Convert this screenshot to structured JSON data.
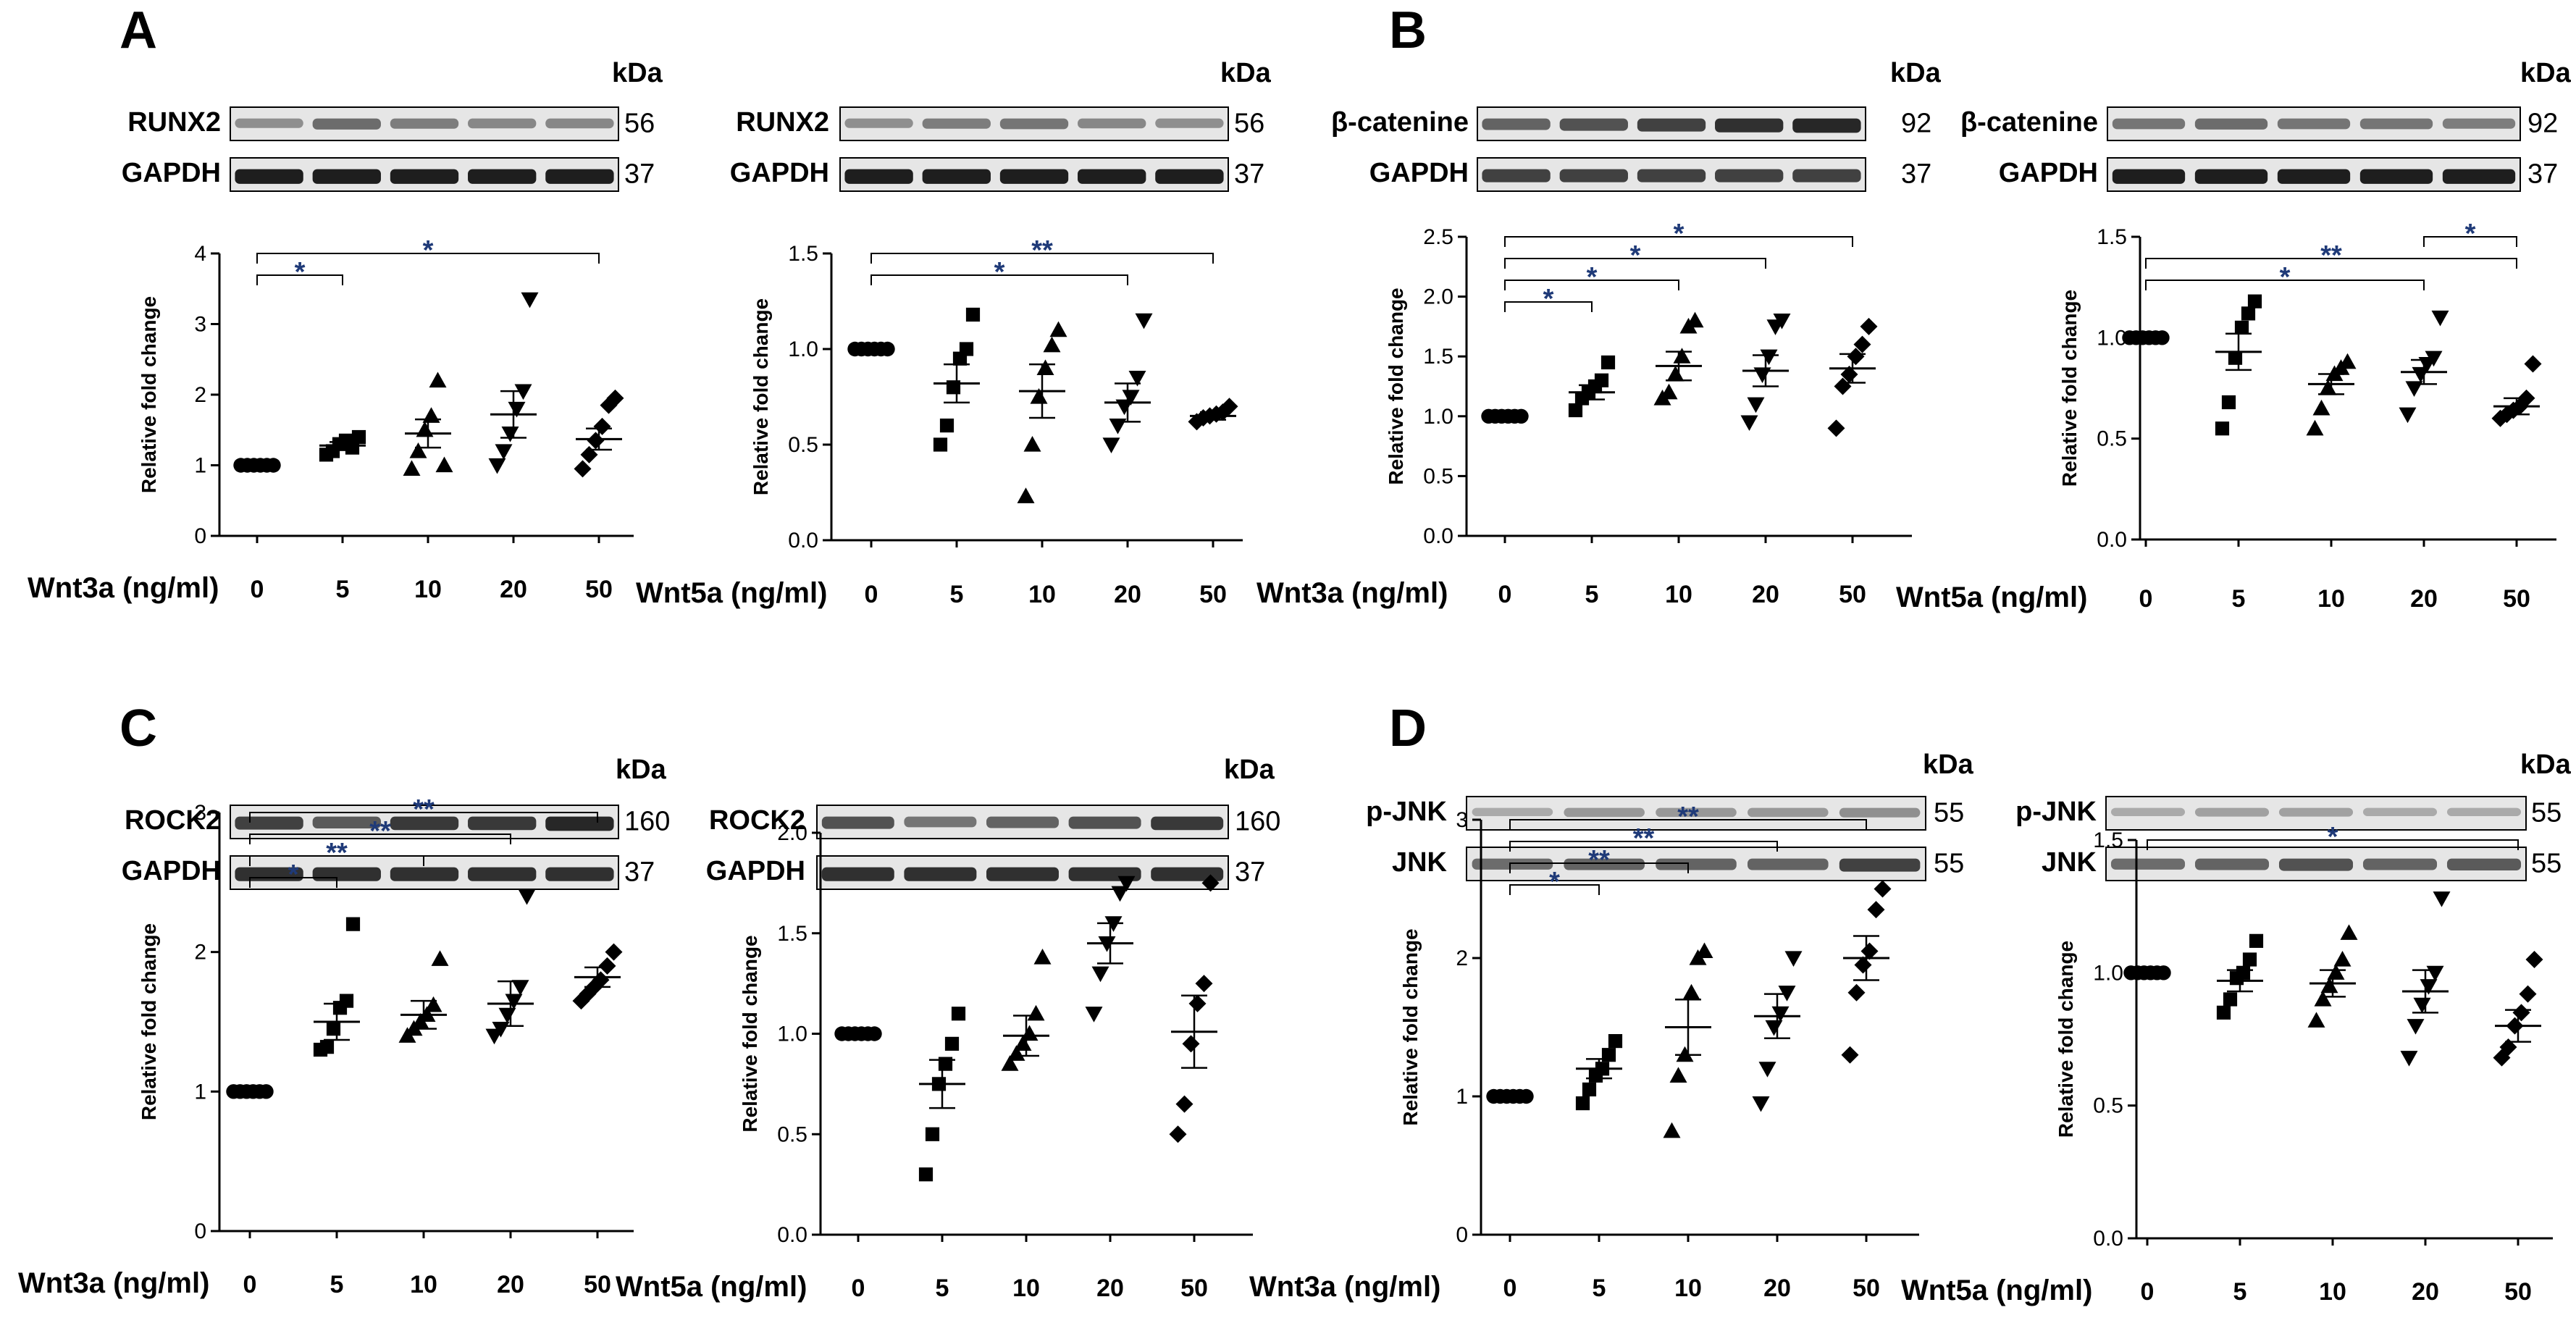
{
  "colors": {
    "ink": "#000000",
    "significance": "#1f3a78",
    "blot_bg": "#e6e6e6",
    "band": "#111111"
  },
  "panel_letters": [
    "A",
    "B",
    "C",
    "D"
  ],
  "kda_label": "kDa",
  "chart_data": [
    {
      "type": "scatter",
      "panel": "A",
      "blot_labels": [
        "RUNX2",
        "GAPDH"
      ],
      "mw": [
        "56",
        "37"
      ],
      "band_intensity": [
        [
          0.35,
          0.55,
          0.45,
          0.4,
          0.4
        ],
        [
          1,
          1,
          1,
          1,
          1
        ]
      ],
      "xlabel": "Wnt3a (ng/ml)",
      "ylabel": "Relative fold change",
      "categories": [
        "0",
        "5",
        "10",
        "20",
        "50"
      ],
      "ylim": [
        0,
        4
      ],
      "yticks": [
        "0",
        "1",
        "2",
        "3",
        "4"
      ],
      "markers": [
        "circle",
        "square",
        "triangle",
        "triangle-down",
        "diamond"
      ],
      "points": [
        [
          1,
          1,
          1,
          1,
          1,
          1
        ],
        [
          1.15,
          1.2,
          1.3,
          1.35,
          1.25,
          1.4
        ],
        [
          0.95,
          1.2,
          1.5,
          1.7,
          2.2,
          1.0
        ],
        [
          1.0,
          1.2,
          1.45,
          1.8,
          2.05,
          3.35
        ],
        [
          0.95,
          1.15,
          1.35,
          1.55,
          1.85,
          1.95
        ]
      ],
      "means": [
        1.0,
        1.28,
        1.45,
        1.72,
        1.37
      ],
      "sems": [
        0.0,
        0.05,
        0.2,
        0.33,
        0.15
      ],
      "significance": [
        {
          "from": 0,
          "to": 1,
          "label": "*"
        },
        {
          "from": 0,
          "to": 4,
          "label": "*"
        }
      ]
    },
    {
      "type": "scatter",
      "panel": "A",
      "blot_labels": [
        "RUNX2",
        "GAPDH"
      ],
      "mw": [
        "56",
        "37"
      ],
      "band_intensity": [
        [
          0.35,
          0.45,
          0.5,
          0.4,
          0.35
        ],
        [
          1,
          1,
          1,
          1,
          1
        ]
      ],
      "xlabel": "Wnt5a (ng/ml)",
      "ylabel": "Relative fold change",
      "categories": [
        "0",
        "5",
        "10",
        "20",
        "50"
      ],
      "ylim": [
        0,
        1.5
      ],
      "yticks": [
        "0.0",
        "0.5",
        "1.0",
        "1.5"
      ],
      "markers": [
        "circle",
        "square",
        "triangle",
        "triangle-down",
        "diamond"
      ],
      "points": [
        [
          1,
          1,
          1,
          1,
          1,
          1
        ],
        [
          0.5,
          0.6,
          0.8,
          0.95,
          1.0,
          1.18
        ],
        [
          0.23,
          0.5,
          0.75,
          0.9,
          1.02,
          1.1
        ],
        [
          0.5,
          0.6,
          0.7,
          0.75,
          0.85,
          1.15
        ],
        [
          0.62,
          0.64,
          0.65,
          0.66,
          0.67,
          0.7
        ]
      ],
      "means": [
        1.0,
        0.82,
        0.78,
        0.72,
        0.65
      ],
      "sems": [
        0.0,
        0.1,
        0.14,
        0.1,
        0.02
      ],
      "significance": [
        {
          "from": 0,
          "to": 3,
          "label": "*"
        },
        {
          "from": 0,
          "to": 4,
          "label": "**"
        }
      ]
    },
    {
      "type": "scatter",
      "panel": "B",
      "blot_labels": [
        "β-catenine",
        "GAPDH"
      ],
      "mw": [
        "92",
        "37"
      ],
      "band_intensity": [
        [
          0.6,
          0.7,
          0.8,
          0.9,
          0.95
        ],
        [
          0.8,
          0.8,
          0.8,
          0.8,
          0.8
        ]
      ],
      "xlabel": "Wnt3a (ng/ml)",
      "ylabel": "Relative fold change",
      "categories": [
        "0",
        "5",
        "10",
        "20",
        "50"
      ],
      "ylim": [
        0,
        2.5
      ],
      "yticks": [
        "0.0",
        "0.5",
        "1.0",
        "1.5",
        "2.0",
        "2.5"
      ],
      "markers": [
        "circle",
        "square",
        "triangle",
        "triangle-down",
        "diamond"
      ],
      "points": [
        [
          1,
          1,
          1,
          1,
          1,
          1
        ],
        [
          1.05,
          1.15,
          1.2,
          1.25,
          1.3,
          1.45
        ],
        [
          1.15,
          1.2,
          1.35,
          1.5,
          1.75,
          1.8
        ],
        [
          0.95,
          1.1,
          1.35,
          1.5,
          1.75,
          1.8
        ],
        [
          0.9,
          1.25,
          1.35,
          1.5,
          1.6,
          1.75
        ]
      ],
      "means": [
        1.0,
        1.2,
        1.42,
        1.38,
        1.4
      ],
      "sems": [
        0.0,
        0.06,
        0.12,
        0.13,
        0.12
      ],
      "significance": [
        {
          "from": 0,
          "to": 1,
          "label": "*"
        },
        {
          "from": 0,
          "to": 2,
          "label": "*"
        },
        {
          "from": 0,
          "to": 3,
          "label": "*"
        },
        {
          "from": 0,
          "to": 4,
          "label": "*"
        }
      ]
    },
    {
      "type": "scatter",
      "panel": "B",
      "blot_labels": [
        "β-catenine",
        "GAPDH"
      ],
      "mw": [
        "92",
        "37"
      ],
      "band_intensity": [
        [
          0.5,
          0.55,
          0.5,
          0.5,
          0.45
        ],
        [
          1,
          1,
          1,
          1,
          1
        ]
      ],
      "xlabel": "Wnt5a (ng/ml)",
      "ylabel": "Relative fold change",
      "categories": [
        "0",
        "5",
        "10",
        "20",
        "50"
      ],
      "ylim": [
        0,
        1.5
      ],
      "yticks": [
        "0.0",
        "0.5",
        "1.0",
        "1.5"
      ],
      "markers": [
        "circle",
        "square",
        "triangle",
        "triangle-down",
        "diamond"
      ],
      "points": [
        [
          1,
          1,
          1,
          1,
          1,
          1
        ],
        [
          0.55,
          0.68,
          0.9,
          1.05,
          1.12,
          1.18
        ],
        [
          0.55,
          0.65,
          0.75,
          0.82,
          0.85,
          0.88
        ],
        [
          0.62,
          0.75,
          0.82,
          0.87,
          0.9,
          1.1
        ],
        [
          0.6,
          0.62,
          0.64,
          0.66,
          0.7,
          0.87
        ]
      ],
      "means": [
        1.0,
        0.93,
        0.77,
        0.83,
        0.66
      ],
      "sems": [
        0.0,
        0.09,
        0.05,
        0.06,
        0.04
      ],
      "significance": [
        {
          "from": 0,
          "to": 3,
          "label": "*"
        },
        {
          "from": 0,
          "to": 4,
          "label": "**"
        },
        {
          "from": 3,
          "to": 4,
          "label": "*"
        }
      ]
    },
    {
      "type": "scatter",
      "panel": "C",
      "blot_labels": [
        "ROCK2",
        "GAPDH"
      ],
      "mw": [
        "160",
        "37"
      ],
      "band_intensity": [
        [
          0.8,
          0.65,
          0.85,
          0.85,
          0.95
        ],
        [
          0.9,
          0.9,
          0.9,
          0.9,
          0.9
        ]
      ],
      "xlabel": "Wnt3a (ng/ml)",
      "ylabel": "Relative fold change",
      "categories": [
        "0",
        "5",
        "10",
        "20",
        "50"
      ],
      "ylim": [
        0,
        3
      ],
      "yticks": [
        "0",
        "1",
        "2",
        "3"
      ],
      "markers": [
        "circle",
        "square",
        "triangle",
        "triangle-down",
        "diamond"
      ],
      "points": [
        [
          1,
          1,
          1,
          1,
          1,
          1
        ],
        [
          1.3,
          1.32,
          1.45,
          1.6,
          1.65,
          2.2
        ],
        [
          1.4,
          1.45,
          1.5,
          1.55,
          1.62,
          1.95
        ],
        [
          1.4,
          1.45,
          1.55,
          1.65,
          1.75,
          2.4
        ],
        [
          1.65,
          1.7,
          1.75,
          1.8,
          1.9,
          2.0
        ]
      ],
      "means": [
        1.0,
        1.5,
        1.55,
        1.63,
        1.82
      ],
      "sems": [
        0.0,
        0.13,
        0.1,
        0.16,
        0.07
      ],
      "significance": [
        {
          "from": 0,
          "to": 1,
          "label": "*"
        },
        {
          "from": 0,
          "to": 2,
          "label": "**"
        },
        {
          "from": 0,
          "to": 3,
          "label": "**"
        },
        {
          "from": 0,
          "to": 4,
          "label": "**"
        }
      ]
    },
    {
      "type": "scatter",
      "panel": "C",
      "blot_labels": [
        "ROCK2",
        "GAPDH"
      ],
      "mw": [
        "160",
        "37"
      ],
      "band_intensity": [
        [
          0.7,
          0.5,
          0.6,
          0.7,
          0.85
        ],
        [
          0.9,
          0.9,
          0.9,
          0.9,
          0.9
        ]
      ],
      "xlabel": "Wnt5a (ng/ml)",
      "ylabel": "Relative fold change",
      "categories": [
        "0",
        "5",
        "10",
        "20",
        "50"
      ],
      "ylim": [
        0,
        2
      ],
      "yticks": [
        "0.0",
        "0.5",
        "1.0",
        "1.5",
        "2.0"
      ],
      "markers": [
        "circle",
        "square",
        "triangle",
        "triangle-down",
        "diamond"
      ],
      "points": [
        [
          1,
          1,
          1,
          1,
          1,
          1
        ],
        [
          0.3,
          0.5,
          0.75,
          0.85,
          0.95,
          1.1
        ],
        [
          0.85,
          0.9,
          0.95,
          1.0,
          1.1,
          1.38
        ],
        [
          1.1,
          1.3,
          1.45,
          1.55,
          1.7,
          1.75
        ],
        [
          0.5,
          0.65,
          0.95,
          1.15,
          1.25,
          1.75
        ]
      ],
      "means": [
        1.0,
        0.75,
        0.99,
        1.45,
        1.01
      ],
      "sems": [
        0.0,
        0.12,
        0.1,
        0.1,
        0.18
      ],
      "significance": []
    },
    {
      "type": "scatter",
      "panel": "D",
      "blot_labels": [
        "p-JNK",
        "JNK"
      ],
      "mw": [
        "55",
        "55"
      ],
      "band_intensity": [
        [
          0.2,
          0.3,
          0.3,
          0.3,
          0.35
        ],
        [
          0.55,
          0.6,
          0.6,
          0.6,
          0.8
        ]
      ],
      "xlabel": "Wnt3a (ng/ml)",
      "ylabel": "Relative fold change",
      "categories": [
        "0",
        "5",
        "10",
        "20",
        "50"
      ],
      "ylim": [
        0,
        3
      ],
      "yticks": [
        "0",
        "1",
        "2",
        "3"
      ],
      "markers": [
        "circle",
        "square",
        "triangle",
        "triangle-down",
        "diamond"
      ],
      "points": [
        [
          1,
          1,
          1,
          1,
          1,
          1
        ],
        [
          0.95,
          1.05,
          1.15,
          1.2,
          1.3,
          1.4
        ],
        [
          0.75,
          1.15,
          1.3,
          1.75,
          2.0,
          2.05
        ],
        [
          0.95,
          1.2,
          1.5,
          1.6,
          1.75,
          2.0
        ],
        [
          1.3,
          1.75,
          1.95,
          2.05,
          2.35,
          2.5
        ]
      ],
      "means": [
        1.0,
        1.2,
        1.5,
        1.58,
        2.0
      ],
      "sems": [
        0.0,
        0.07,
        0.2,
        0.16,
        0.16
      ],
      "significance": [
        {
          "from": 0,
          "to": 1,
          "label": "*"
        },
        {
          "from": 0,
          "to": 2,
          "label": "**"
        },
        {
          "from": 0,
          "to": 3,
          "label": "**"
        },
        {
          "from": 0,
          "to": 4,
          "label": "**"
        }
      ]
    },
    {
      "type": "scatter",
      "panel": "D",
      "blot_labels": [
        "p-JNK",
        "JNK"
      ],
      "mw": [
        "55",
        "55"
      ],
      "band_intensity": [
        [
          0.2,
          0.25,
          0.25,
          0.2,
          0.2
        ],
        [
          0.55,
          0.6,
          0.7,
          0.6,
          0.65
        ]
      ],
      "xlabel": "Wnt5a (ng/ml)",
      "ylabel": "Relative fold change",
      "categories": [
        "0",
        "5",
        "10",
        "20",
        "50"
      ],
      "ylim": [
        0,
        1.5
      ],
      "yticks": [
        "0.0",
        "0.5",
        "1.0",
        "1.5"
      ],
      "markers": [
        "circle",
        "square",
        "triangle",
        "triangle-down",
        "diamond"
      ],
      "points": [
        [
          1,
          1,
          1,
          1,
          1,
          1
        ],
        [
          0.85,
          0.9,
          0.98,
          1.0,
          1.05,
          1.12
        ],
        [
          0.82,
          0.9,
          0.95,
          1.0,
          1.05,
          1.15
        ],
        [
          0.68,
          0.8,
          0.88,
          0.95,
          1.0,
          1.28
        ],
        [
          0.68,
          0.72,
          0.8,
          0.85,
          0.92,
          1.05
        ]
      ],
      "means": [
        1.0,
        0.97,
        0.96,
        0.93,
        0.8
      ],
      "sems": [
        0.0,
        0.04,
        0.05,
        0.08,
        0.06
      ],
      "significance": [
        {
          "from": 0,
          "to": 4,
          "label": "*"
        }
      ]
    }
  ]
}
